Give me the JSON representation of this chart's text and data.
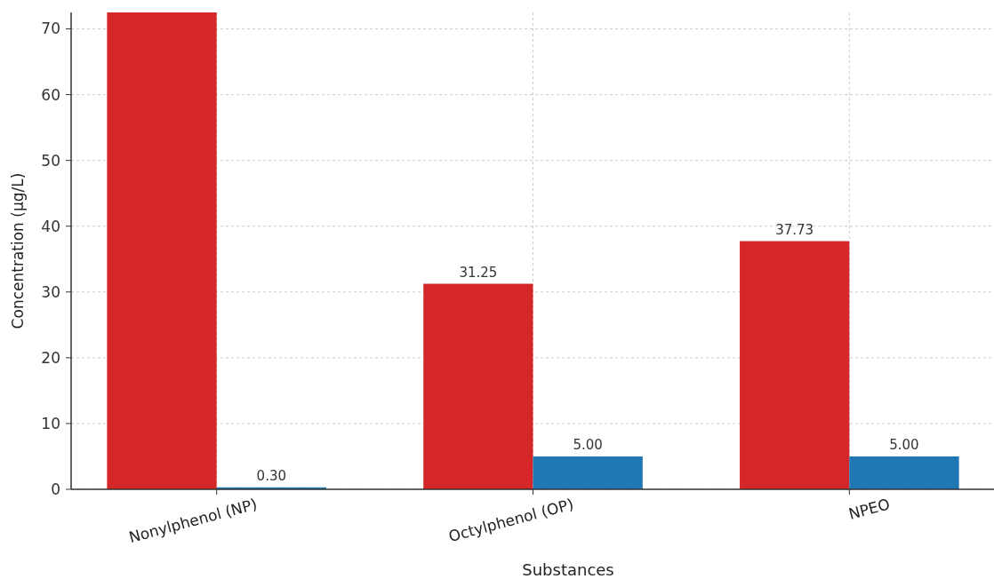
{
  "chart_data": {
    "type": "bar",
    "xlabel": "Substances",
    "ylabel": "Concentration (µg/L)",
    "categories": [
      "Nonylphenol (NP)",
      "Octylphenol (OP)",
      "NPEO"
    ],
    "series": [
      {
        "color": "#d62728",
        "values": [
          72.5,
          31.25,
          37.73
        ],
        "value_labels": [
          null,
          "31.25",
          "37.73"
        ]
      },
      {
        "color": "#1f77b4",
        "values": [
          0.3,
          5.0,
          5.0
        ],
        "value_labels": [
          "0.30",
          "5.00",
          "5.00"
        ]
      }
    ],
    "ylim": [
      0,
      72.5
    ],
    "yticks": [
      0,
      10,
      20,
      30,
      40,
      50,
      60,
      70
    ],
    "grid": true
  }
}
